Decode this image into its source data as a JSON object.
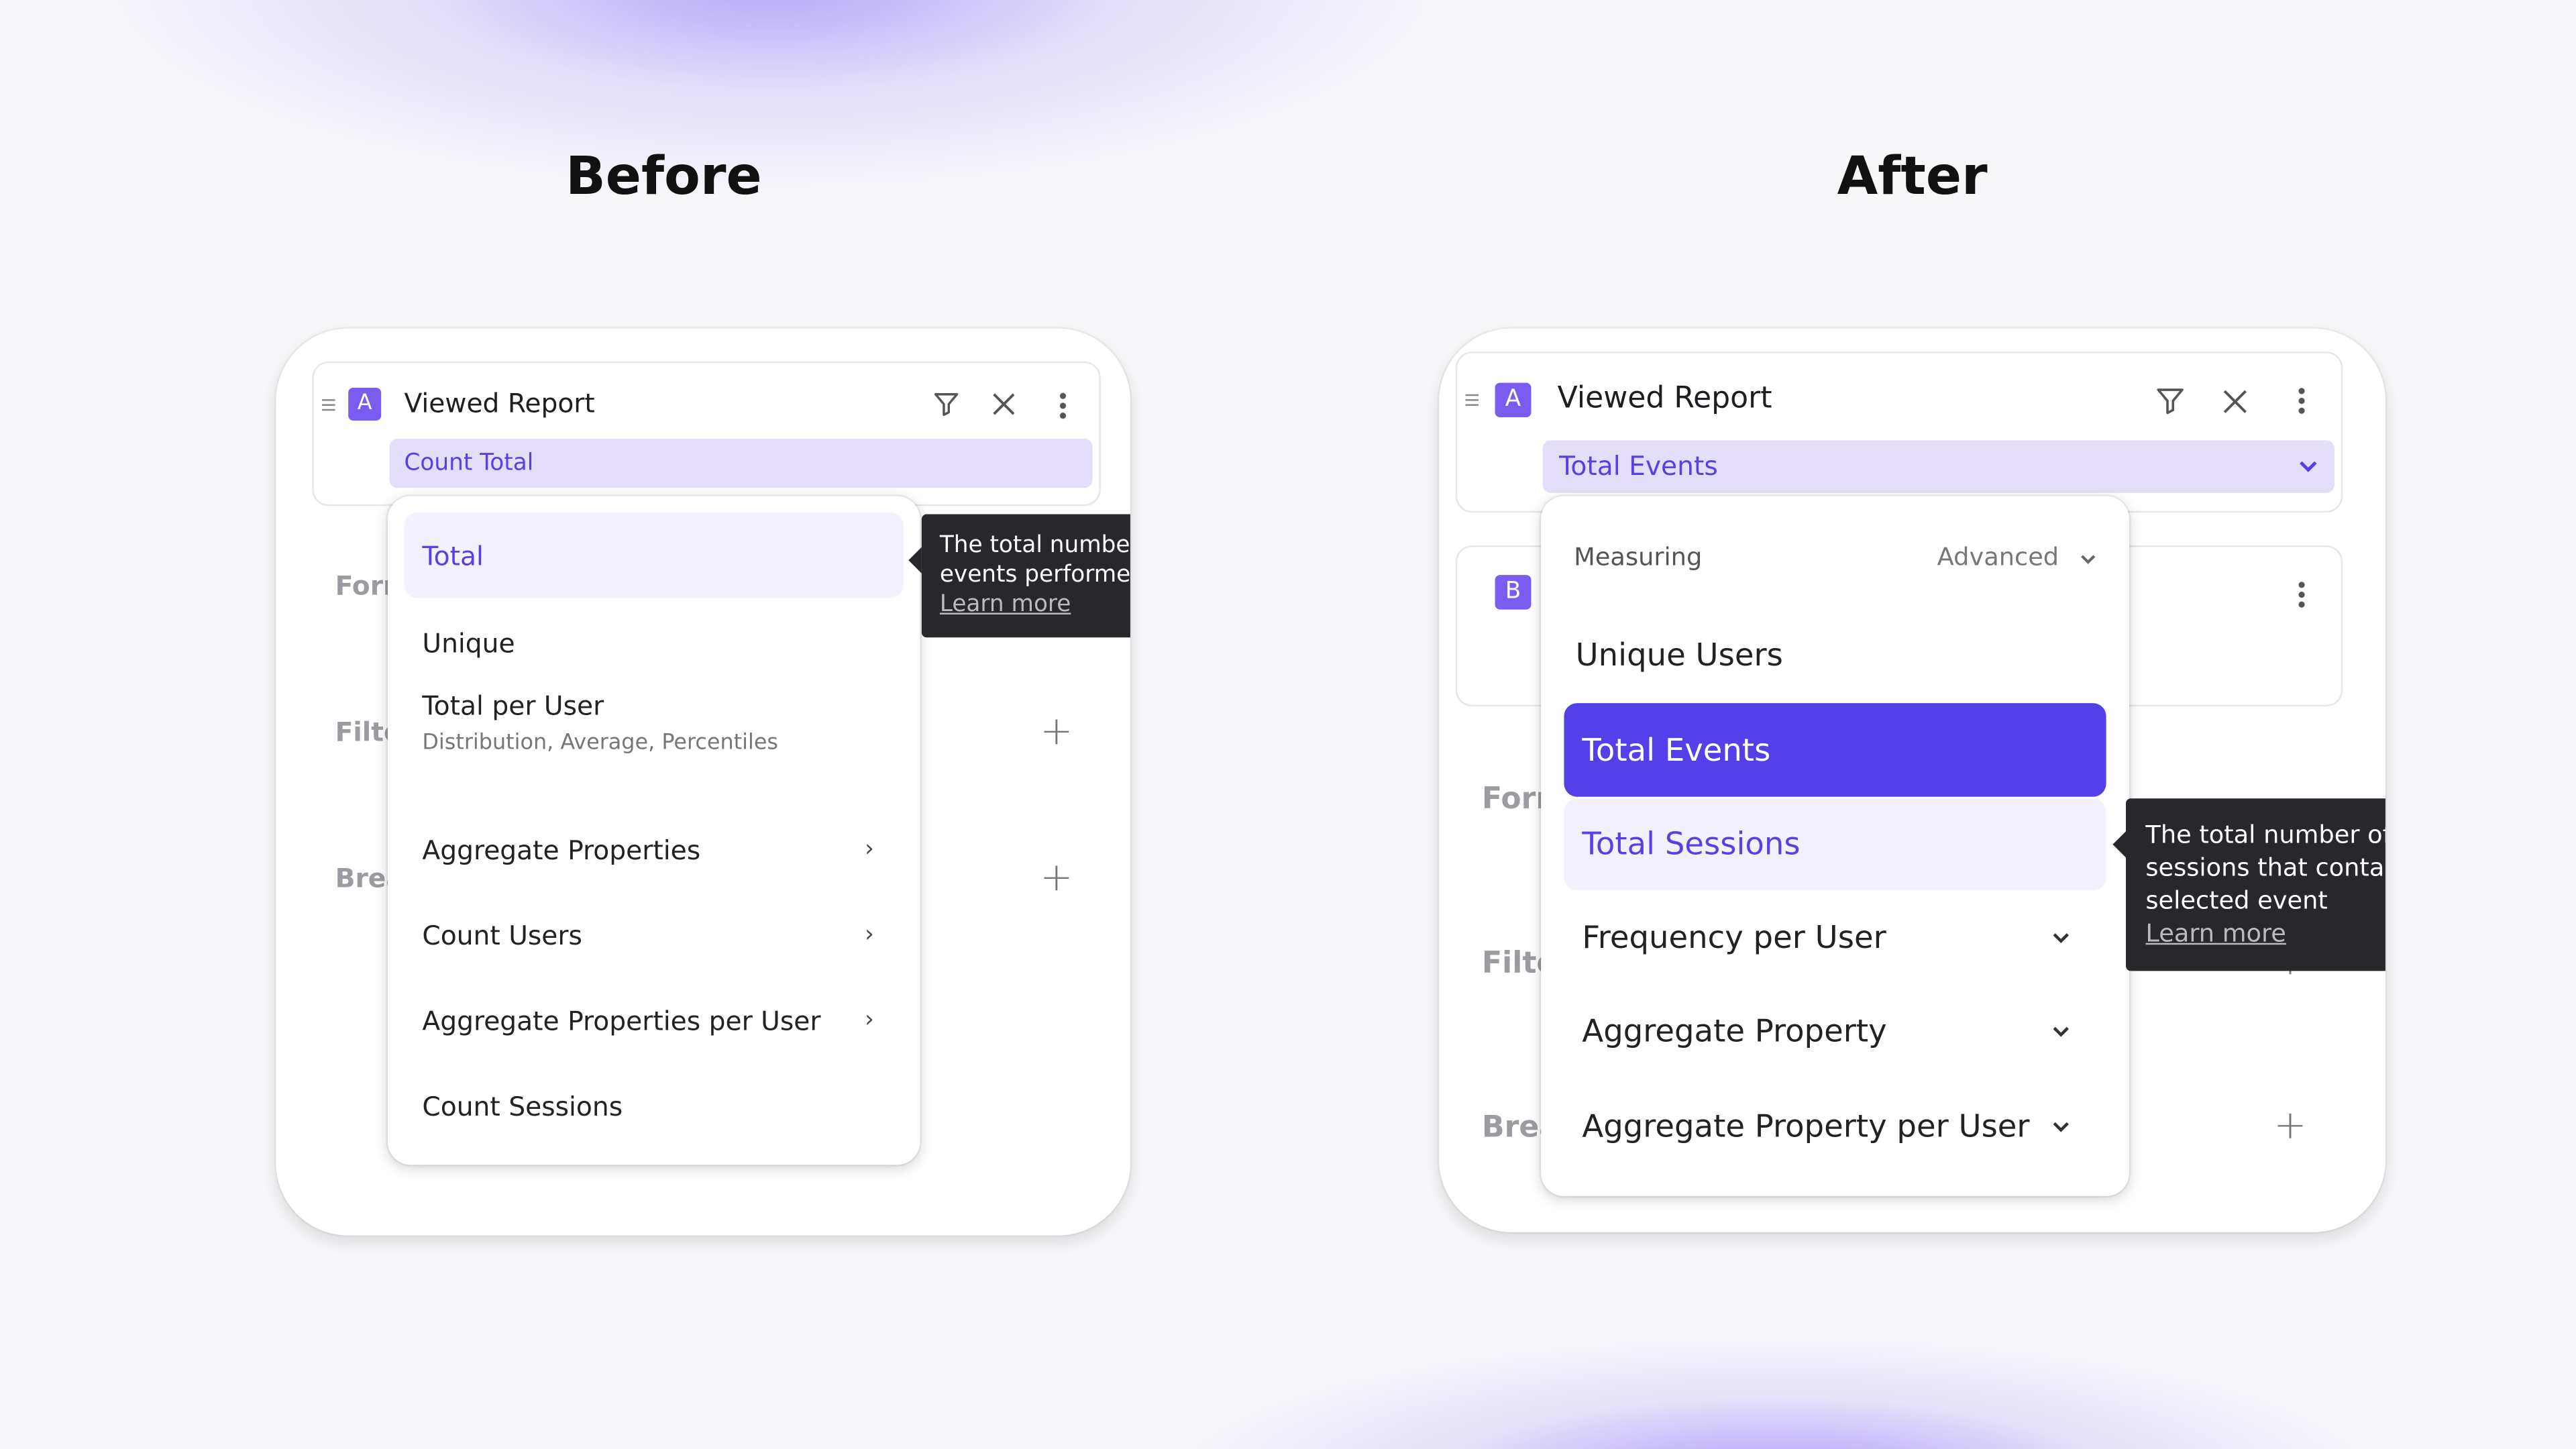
{
  "before": {
    "heading": "Before",
    "event": {
      "badge": "A",
      "name": "Viewed Report",
      "measure": "Count Total"
    },
    "background_labels": [
      "Forr",
      "Filte",
      "Brea"
    ],
    "menu": [
      {
        "label": "Total",
        "state": "hovered"
      },
      {
        "label": "Unique"
      },
      {
        "label": "Total per User",
        "sublabel": "Distribution, Average, Percentiles"
      },
      {
        "label": "Aggregate Properties",
        "icon": "chevron-right-icon"
      },
      {
        "label": "Count Users",
        "icon": "chevron-right-icon"
      },
      {
        "label": "Aggregate Properties per User",
        "icon": "chevron-right-icon"
      },
      {
        "label": "Count Sessions"
      }
    ],
    "tooltip": {
      "lines": [
        "The total number",
        "events performed"
      ],
      "link": "Learn more"
    }
  },
  "after": {
    "heading": "After",
    "event": {
      "badge": "A",
      "name": "Viewed Report",
      "measure": "Total Events"
    },
    "event_b": {
      "badge": "B"
    },
    "background_labels": [
      "Forr",
      "Filte",
      "Brea"
    ],
    "menu_header": {
      "label": "Measuring",
      "advanced": "Advanced"
    },
    "menu": [
      {
        "label": "Unique Users"
      },
      {
        "label": "Total Events",
        "state": "selected"
      },
      {
        "label": "Total Sessions",
        "state": "hovered"
      },
      {
        "label": "Frequency per User",
        "icon": "chevron-down-icon"
      },
      {
        "label": "Aggregate Property",
        "icon": "chevron-down-icon"
      },
      {
        "label": "Aggregate Property per User",
        "icon": "chevron-down-icon"
      }
    ],
    "tooltip": {
      "lines": [
        "The total number of",
        "sessions that contain",
        "selected event"
      ],
      "link": "Learn more"
    }
  },
  "colors": {
    "accent": "#5340e8",
    "badge": "#7b5cf0",
    "pill": "#e4defb",
    "hover": "#f3f1fe",
    "tooltip": "#28282c"
  }
}
